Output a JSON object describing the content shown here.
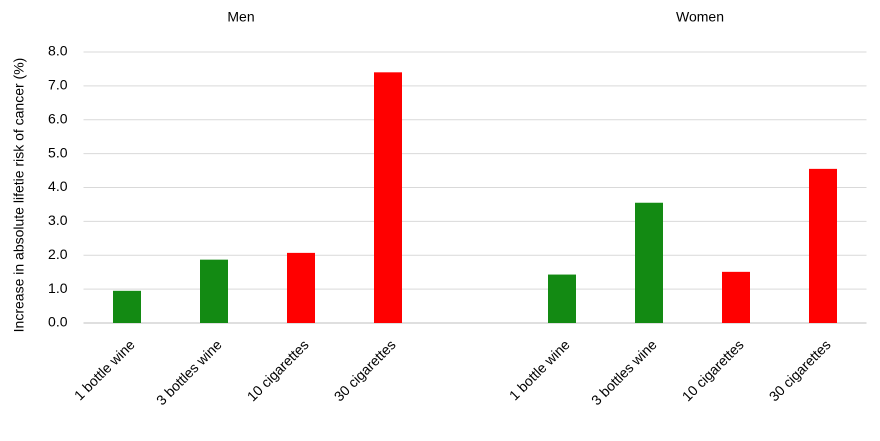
{
  "chart_data": {
    "type": "bar",
    "group_labels": [
      "Men",
      "Women"
    ],
    "y_label": "Increase in absolute lifetie risk of cancer (%)",
    "categories": [
      "1 bottle wine",
      "3 bottles wine",
      "10 cigarettes",
      "30 cigarettes",
      null,
      "1 bottle wine",
      "3 bottles wine",
      "10 cigarettes",
      "30 cigarettes"
    ],
    "values": [
      0.95,
      1.87,
      2.07,
      7.4,
      null,
      1.43,
      3.55,
      1.51,
      4.55
    ],
    "colors": [
      "#138a13",
      "#138a13",
      "#ff0000",
      "#ff0000",
      null,
      "#138a13",
      "#138a13",
      "#ff0000",
      "#ff0000"
    ],
    "ylim": [
      0,
      8
    ],
    "yticks": [
      {
        "value": 0,
        "label": "0.0"
      },
      {
        "value": 1,
        "label": "1.0"
      },
      {
        "value": 2,
        "label": "2.0"
      },
      {
        "value": 3,
        "label": "3.0"
      },
      {
        "value": 4,
        "label": "4.0"
      },
      {
        "value": 5,
        "label": "5.0"
      },
      {
        "value": 6,
        "label": "6.0"
      },
      {
        "value": 7,
        "label": "7.0"
      },
      {
        "value": 8,
        "label": "8.0"
      }
    ],
    "grid": true
  }
}
